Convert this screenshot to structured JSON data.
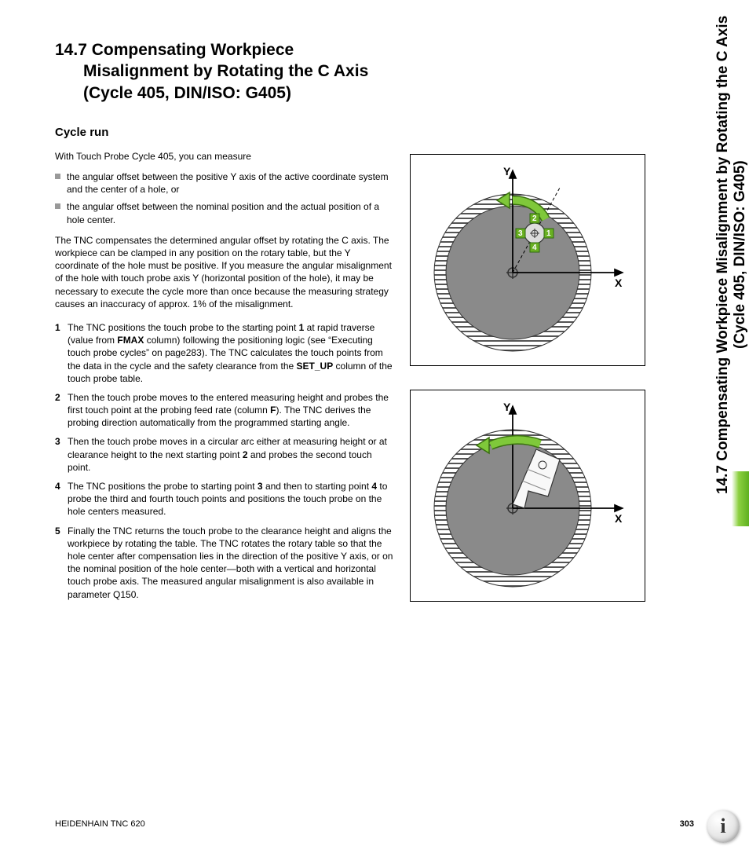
{
  "heading": {
    "number": "14.7",
    "title_l1": "Compensating Workpiece",
    "title_l2": "Misalignment by Rotating the C Axis",
    "title_l3": "(Cycle 405, DIN/ISO: G405)"
  },
  "subheading": "Cycle run",
  "intro": "With Touch Probe Cycle 405, you can measure",
  "bullets": [
    "the angular offset between the positive Y axis of the active coordinate system and the center of a hole, or",
    "the angular offset between the nominal position and the actual position of a hole center."
  ],
  "body_para": "The TNC compensates the determined angular offset by rotating the C axis. The workpiece can be clamped in any position on the rotary table, but the Y coordinate of the hole must be positive. If you measure the angular misalignment of the hole with touch probe axis Y (horizontal position of the hole), it may be necessary to execute the cycle more than once because the measuring strategy causes an inaccuracy of approx. 1% of the misalignment.",
  "steps": [
    {
      "n": "1",
      "html": "The TNC positions the touch probe to the starting point <b>1</b> at rapid traverse (value from <b>FMAX</b> column) following the positioning logic (see “Executing touch probe cycles” on page283). The TNC calculates the touch points from the data in the cycle and the safety clearance from the <b>SET_UP</b> column of the touch probe table."
    },
    {
      "n": "2",
      "html": "Then the touch probe moves to the entered measuring height and probes the first touch point at the probing feed rate (column <b>F</b>). The TNC derives the probing direction automatically from the programmed starting angle."
    },
    {
      "n": "3",
      "html": "Then the touch probe moves in a circular arc either at measuring height or at clearance height to the next starting point <b>2</b> and probes the second touch point."
    },
    {
      "n": "4",
      "html": "The TNC positions the probe to starting point <b>3</b> and then to starting point <b>4</b> to probe the third and fourth touch points and positions the touch probe on the hole centers measured."
    },
    {
      "n": "5",
      "html": "Finally the TNC returns the touch probe to the clearance height and aligns the workpiece by rotating the table. The TNC rotates the rotary table so that the hole center after compensation lies in the direction of the positive Y axis, or on the nominal position of the hole center—both with a vertical and horizontal touch probe axis. The measured angular misalignment is also available in parameter Q150."
    }
  ],
  "side_title_l1": "14.7 Compensating Workpiece Misalignment by Rotating the C Axis",
  "side_title_l2": "(Cycle 405, DIN/ISO: G405)",
  "diagram": {
    "axes": {
      "x_label": "X",
      "y_label": "Y"
    },
    "hatch_color": "#666666",
    "plate_color": "#888888",
    "arrow_color": "#6ab023",
    "point_labels": [
      "1",
      "2",
      "3",
      "4"
    ],
    "point_bg": "#6ab023",
    "dash_color": "#000000"
  },
  "footer": {
    "left": "HEIDENHAIN TNC 620",
    "page": "303"
  },
  "colors": {
    "text": "#000000",
    "bullet_square": "#999999",
    "side_green": "#6ab023"
  }
}
